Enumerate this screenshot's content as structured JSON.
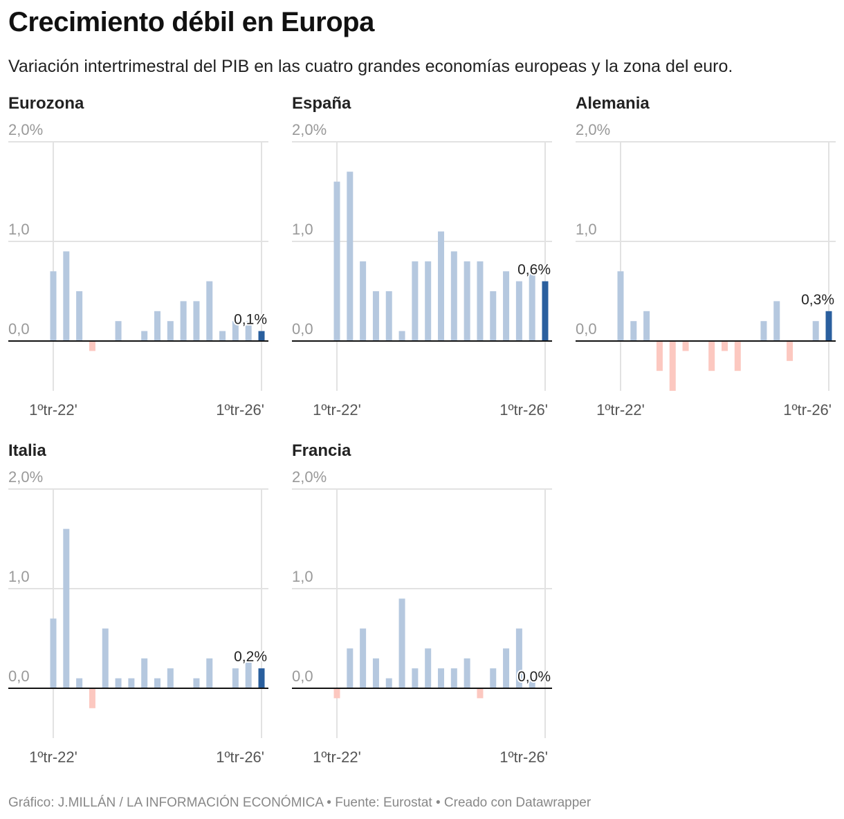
{
  "title": "Crecimiento débil en Europa",
  "subtitle": "Variación intertrimestral del PIB en las cuatro grandes economías europeas y la zona del euro.",
  "footer": "Gráfico: J.MILLÁN / LA INFORMACIÓN ECONÓMICA • Fuente: Eurostat • Creado con Datawrapper",
  "colors": {
    "positive": "#b5c8df",
    "negative": "#fcc8c0",
    "latest": "#2a5f9e",
    "zero_line": "#111111",
    "grid": "#e2e2e2",
    "tick_text": "#999999"
  },
  "chart_data": [
    {
      "type": "bar",
      "title": "Eurozona",
      "ylim": [
        -0.5,
        2.0
      ],
      "yticks": [
        "2,0%",
        "1,0",
        "0,0"
      ],
      "xticks": [
        "1ºtr-22'",
        "1ºtr-26'"
      ],
      "grid": true,
      "x": [
        "1T22",
        "2T22",
        "3T22",
        "4T22",
        "1T23",
        "2T23",
        "3T23",
        "4T23",
        "1T24",
        "2T24",
        "3T24",
        "4T24",
        "1T25",
        "2T25",
        "3T25",
        "4T25",
        "1T26"
      ],
      "values": [
        0.7,
        0.9,
        0.5,
        -0.1,
        0.0,
        0.2,
        0.0,
        0.1,
        0.3,
        0.2,
        0.4,
        0.4,
        0.6,
        0.1,
        0.2,
        0.2,
        0.1
      ],
      "last_label": "0,1%"
    },
    {
      "type": "bar",
      "title": "España",
      "ylim": [
        -0.5,
        2.0
      ],
      "yticks": [
        "2,0%",
        "1,0",
        "0,0"
      ],
      "xticks": [
        "1ºtr-22'",
        "1ºtr-26'"
      ],
      "grid": true,
      "x": [
        "1T22",
        "2T22",
        "3T22",
        "4T22",
        "1T23",
        "2T23",
        "3T23",
        "4T23",
        "1T24",
        "2T24",
        "3T24",
        "4T24",
        "1T25",
        "2T25",
        "3T25",
        "4T25",
        "1T26"
      ],
      "values": [
        1.6,
        1.7,
        0.8,
        0.5,
        0.5,
        0.1,
        0.8,
        0.8,
        1.1,
        0.9,
        0.8,
        0.8,
        0.5,
        0.7,
        0.6,
        0.7,
        0.6
      ],
      "last_label": "0,6%"
    },
    {
      "type": "bar",
      "title": "Alemania",
      "ylim": [
        -0.5,
        2.0
      ],
      "yticks": [
        "2,0%",
        "1,0",
        "0,0"
      ],
      "xticks": [
        "1ºtr-22'",
        "1ºtr-26'"
      ],
      "grid": true,
      "x": [
        "1T22",
        "2T22",
        "3T22",
        "4T22",
        "1T23",
        "2T23",
        "3T23",
        "4T23",
        "1T24",
        "2T24",
        "3T24",
        "4T24",
        "1T25",
        "2T25",
        "3T25",
        "4T25",
        "1T26"
      ],
      "values": [
        0.7,
        0.2,
        0.3,
        -0.3,
        -0.5,
        -0.1,
        0.0,
        -0.3,
        -0.1,
        -0.3,
        0.0,
        0.2,
        0.4,
        -0.2,
        0.0,
        0.2,
        0.3
      ],
      "last_label": "0,3%"
    },
    {
      "type": "bar",
      "title": "Italia",
      "ylim": [
        -0.5,
        2.0
      ],
      "yticks": [
        "2,0%",
        "1,0",
        "0,0"
      ],
      "xticks": [
        "1ºtr-22'",
        "1ºtr-26'"
      ],
      "grid": true,
      "x": [
        "1T22",
        "2T22",
        "3T22",
        "4T22",
        "1T23",
        "2T23",
        "3T23",
        "4T23",
        "1T24",
        "2T24",
        "3T24",
        "4T24",
        "1T25",
        "2T25",
        "3T25",
        "4T25",
        "1T26"
      ],
      "values": [
        0.7,
        1.6,
        0.1,
        -0.2,
        0.6,
        0.1,
        0.1,
        0.3,
        0.1,
        0.2,
        0.0,
        0.1,
        0.3,
        0.0,
        0.2,
        0.3,
        0.2
      ],
      "last_label": "0,2%"
    },
    {
      "type": "bar",
      "title": "Francia",
      "ylim": [
        -0.5,
        2.0
      ],
      "yticks": [
        "2,0%",
        "1,0",
        "0,0"
      ],
      "xticks": [
        "1ºtr-22'",
        "1ºtr-26'"
      ],
      "grid": true,
      "x": [
        "1T22",
        "2T22",
        "3T22",
        "4T22",
        "1T23",
        "2T23",
        "3T23",
        "4T23",
        "1T24",
        "2T24",
        "3T24",
        "4T24",
        "1T25",
        "2T25",
        "3T25",
        "4T25",
        "1T26"
      ],
      "values": [
        -0.1,
        0.4,
        0.6,
        0.3,
        0.1,
        0.9,
        0.2,
        0.4,
        0.2,
        0.2,
        0.3,
        -0.1,
        0.2,
        0.4,
        0.6,
        0.1,
        0.0
      ],
      "last_label": "0,0%"
    }
  ]
}
